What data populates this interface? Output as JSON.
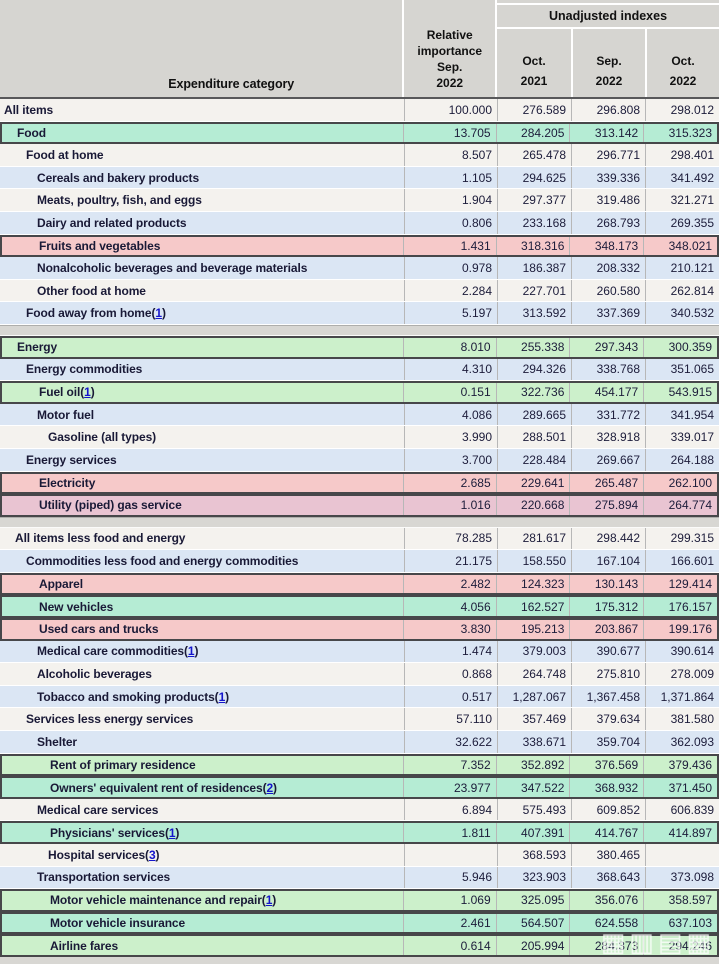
{
  "header": {
    "category_label": "Expenditure category",
    "relative_importance_lines": [
      "Relative",
      "importance",
      "Sep.",
      "2022"
    ],
    "group_label": "Unadjusted indexes",
    "months": [
      {
        "l1": "Oct.",
        "l2": "2021"
      },
      {
        "l1": "Sep.",
        "l2": "2022"
      },
      {
        "l1": "Oct.",
        "l2": "2022"
      }
    ]
  },
  "punctuation": {
    "paren_open": "(",
    "paren_close": ")"
  },
  "colors": {
    "row_white": "#f4f2ee",
    "row_blue": "#dbe6f4",
    "highlight_green_on_white": "#ccf0cb",
    "highlight_green_on_blue": "#b5ecd4",
    "highlight_pink_on_white": "#f6c9c9",
    "highlight_pink_on_blue": "#e9c4d2",
    "highlight_border": "#47474a",
    "footnote_link_blue": "#1414cc",
    "header_gray": "#d6d5d1"
  },
  "watermark": {
    "glyphs": "▦▥▤▦"
  },
  "rows": [
    {
      "label": "All items",
      "footnote": "",
      "indent": 0,
      "style": "white",
      "hl": false,
      "values": [
        "100.000",
        "276.589",
        "296.808",
        "298.012"
      ]
    },
    {
      "label": "Food",
      "footnote": "",
      "indent": 1,
      "style": "teal",
      "hl": true,
      "values": [
        "13.705",
        "284.205",
        "313.142",
        "315.323"
      ]
    },
    {
      "label": "Food at home",
      "footnote": "",
      "indent": 2,
      "style": "white",
      "hl": false,
      "values": [
        "8.507",
        "265.478",
        "296.771",
        "298.401"
      ]
    },
    {
      "label": "Cereals and bakery products",
      "footnote": "",
      "indent": 3,
      "style": "blue",
      "hl": false,
      "values": [
        "1.105",
        "294.625",
        "339.336",
        "341.492"
      ]
    },
    {
      "label": "Meats, poultry, fish, and eggs",
      "footnote": "",
      "indent": 3,
      "style": "white",
      "hl": false,
      "values": [
        "1.904",
        "297.377",
        "319.486",
        "321.271"
      ]
    },
    {
      "label": "Dairy and related products",
      "footnote": "",
      "indent": 3,
      "style": "blue",
      "hl": false,
      "values": [
        "0.806",
        "233.168",
        "268.793",
        "269.355"
      ]
    },
    {
      "label": "Fruits and vegetables",
      "footnote": "",
      "indent": 3,
      "style": "pink",
      "hl": true,
      "values": [
        "1.431",
        "318.316",
        "348.173",
        "348.021"
      ]
    },
    {
      "label": "Nonalcoholic beverages and beverage materials",
      "footnote": "",
      "indent": 3,
      "style": "blue",
      "hl": false,
      "values": [
        "0.978",
        "186.387",
        "208.332",
        "210.121"
      ]
    },
    {
      "label": "Other food at home",
      "footnote": "",
      "indent": 3,
      "style": "white",
      "hl": false,
      "values": [
        "2.284",
        "227.701",
        "260.580",
        "262.814"
      ]
    },
    {
      "label": "Food away from home",
      "footnote": "1",
      "indent": 2,
      "style": "blue",
      "hl": false,
      "gap_after": true,
      "values": [
        "5.197",
        "313.592",
        "337.369",
        "340.532"
      ]
    },
    {
      "label": "Energy",
      "footnote": "",
      "indent": 1,
      "style": "green",
      "hl": true,
      "values": [
        "8.010",
        "255.338",
        "297.343",
        "300.359"
      ]
    },
    {
      "label": "Energy commodities",
      "footnote": "",
      "indent": 2,
      "style": "blue",
      "hl": false,
      "values": [
        "4.310",
        "294.326",
        "338.768",
        "351.065"
      ]
    },
    {
      "label": "Fuel oil",
      "footnote": "1",
      "indent": 3,
      "style": "green",
      "hl": true,
      "values": [
        "0.151",
        "322.736",
        "454.177",
        "543.915"
      ]
    },
    {
      "label": "Motor fuel",
      "footnote": "",
      "indent": 3,
      "style": "blue",
      "hl": false,
      "values": [
        "4.086",
        "289.665",
        "331.772",
        "341.954"
      ]
    },
    {
      "label": "Gasoline (all types)",
      "footnote": "",
      "indent": 4,
      "style": "white",
      "hl": false,
      "values": [
        "3.990",
        "288.501",
        "328.918",
        "339.017"
      ]
    },
    {
      "label": "Energy services",
      "footnote": "",
      "indent": 2,
      "style": "blue",
      "hl": false,
      "values": [
        "3.700",
        "228.484",
        "269.667",
        "264.188"
      ]
    },
    {
      "label": "Electricity",
      "footnote": "",
      "indent": 3,
      "style": "pink",
      "hl": true,
      "values": [
        "2.685",
        "229.641",
        "265.487",
        "262.100"
      ]
    },
    {
      "label": "Utility (piped) gas service",
      "footnote": "",
      "indent": 3,
      "style": "mauve",
      "hl": true,
      "gap_after": true,
      "values": [
        "1.016",
        "220.668",
        "275.894",
        "264.774"
      ]
    },
    {
      "label": "All items less food and energy",
      "footnote": "",
      "indent": 1,
      "style": "white",
      "hl": false,
      "values": [
        "78.285",
        "281.617",
        "298.442",
        "299.315"
      ]
    },
    {
      "label": "Commodities less food and energy commodities",
      "footnote": "",
      "indent": 2,
      "style": "blue",
      "hl": false,
      "values": [
        "21.175",
        "158.550",
        "167.104",
        "166.601"
      ]
    },
    {
      "label": "Apparel",
      "footnote": "",
      "indent": 3,
      "style": "pink",
      "hl": true,
      "values": [
        "2.482",
        "124.323",
        "130.143",
        "129.414"
      ]
    },
    {
      "label": "New vehicles",
      "footnote": "",
      "indent": 3,
      "style": "teal",
      "hl": true,
      "values": [
        "4.056",
        "162.527",
        "175.312",
        "176.157"
      ]
    },
    {
      "label": "Used cars and trucks",
      "footnote": "",
      "indent": 3,
      "style": "pink",
      "hl": true,
      "values": [
        "3.830",
        "195.213",
        "203.867",
        "199.176"
      ]
    },
    {
      "label": "Medical care commodities",
      "footnote": "1",
      "indent": 3,
      "style": "blue",
      "hl": false,
      "values": [
        "1.474",
        "379.003",
        "390.677",
        "390.614"
      ]
    },
    {
      "label": "Alcoholic beverages",
      "footnote": "",
      "indent": 3,
      "style": "white",
      "hl": false,
      "values": [
        "0.868",
        "264.748",
        "275.810",
        "278.009"
      ]
    },
    {
      "label": "Tobacco and smoking products",
      "footnote": "1",
      "indent": 3,
      "style": "blue",
      "hl": false,
      "values": [
        "0.517",
        "1,287.067",
        "1,367.458",
        "1,371.864"
      ]
    },
    {
      "label": "Services less energy services",
      "footnote": "",
      "indent": 2,
      "style": "white",
      "hl": false,
      "values": [
        "57.110",
        "357.469",
        "379.634",
        "381.580"
      ]
    },
    {
      "label": "Shelter",
      "footnote": "",
      "indent": 3,
      "style": "blue",
      "hl": false,
      "values": [
        "32.622",
        "338.671",
        "359.704",
        "362.093"
      ]
    },
    {
      "label": "Rent of primary residence",
      "footnote": "",
      "indent": 4,
      "style": "green",
      "hl": true,
      "values": [
        "7.352",
        "352.892",
        "376.569",
        "379.436"
      ]
    },
    {
      "label": "Owners' equivalent rent of residences",
      "footnote": "2",
      "indent": 4,
      "style": "teal",
      "hl": true,
      "values": [
        "23.977",
        "347.522",
        "368.932",
        "371.450"
      ]
    },
    {
      "label": "Medical care services",
      "footnote": "",
      "indent": 3,
      "style": "white",
      "hl": false,
      "values": [
        "6.894",
        "575.493",
        "609.852",
        "606.839"
      ]
    },
    {
      "label": "Physicians' services",
      "footnote": "1",
      "indent": 4,
      "style": "teal",
      "hl": true,
      "values": [
        "1.811",
        "407.391",
        "414.767",
        "414.897"
      ]
    },
    {
      "label": "Hospital services",
      "footnote": "3",
      "indent": 4,
      "style": "white",
      "hl": false,
      "values": [
        "",
        "368.593",
        "380.465",
        ""
      ]
    },
    {
      "label": "Transportation services",
      "footnote": "",
      "indent": 3,
      "style": "blue",
      "hl": false,
      "values": [
        "5.946",
        "323.903",
        "368.643",
        "373.098"
      ]
    },
    {
      "label": "Motor vehicle maintenance and repair",
      "footnote": "1",
      "indent": 4,
      "style": "green",
      "hl": true,
      "values": [
        "1.069",
        "325.095",
        "356.076",
        "358.597"
      ]
    },
    {
      "label": "Motor vehicle insurance",
      "footnote": "",
      "indent": 4,
      "style": "teal",
      "hl": true,
      "values": [
        "2.461",
        "564.507",
        "624.558",
        "637.103"
      ]
    },
    {
      "label": "Airline fares",
      "footnote": "",
      "indent": 4,
      "style": "green",
      "hl": true,
      "values": [
        "0.614",
        "205.994",
        "284.373",
        "294.246"
      ]
    }
  ]
}
